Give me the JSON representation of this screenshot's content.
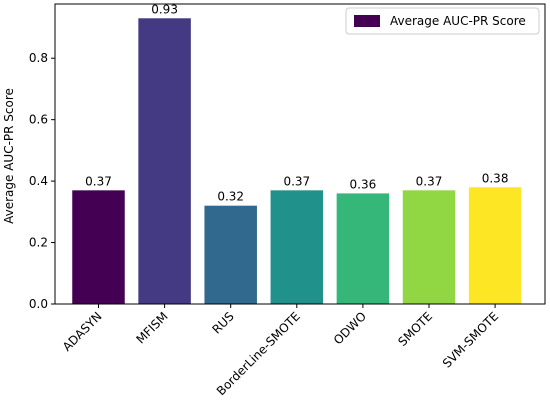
{
  "chart_data": {
    "type": "bar",
    "title": "",
    "xlabel": "",
    "ylabel": "Average AUC-PR Score",
    "categories": [
      "ADASYN",
      "MFISM",
      "RUS",
      "BorderLine-SMOTE",
      "ODWO",
      "SMOTE",
      "SVM-SMOTE"
    ],
    "series": [
      {
        "name": "Average AUC-PR Score",
        "values": [
          0.37,
          0.93,
          0.32,
          0.37,
          0.36,
          0.37,
          0.38
        ],
        "value_labels": [
          "0.37",
          "0.93",
          "0.32",
          "0.37",
          "0.36",
          "0.37",
          "0.38"
        ],
        "colors": [
          "#440154",
          "#443983",
          "#31688e",
          "#21918c",
          "#35b779",
          "#90d743",
          "#fde725"
        ]
      }
    ],
    "ylim": [
      0,
      0.9765
    ],
    "yticks": [
      0.0,
      0.2,
      0.4,
      0.6,
      0.8
    ],
    "ytick_labels": [
      "0.0",
      "0.2",
      "0.4",
      "0.6",
      "0.8"
    ],
    "legend": {
      "placement": "top-right",
      "swatch_color": "#440154"
    },
    "grid": false
  }
}
